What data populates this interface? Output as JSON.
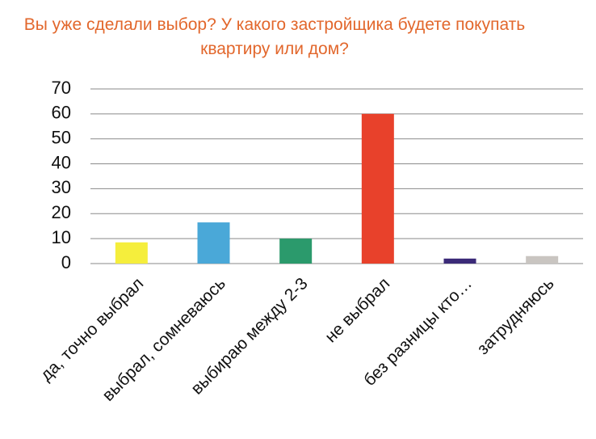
{
  "chart_data": {
    "type": "bar",
    "title": "Вы уже сделали выбор? У какого застройщика будете покупать квартиру или дом?",
    "categories": [
      "да, точно  выбрал",
      "выбрал, сомневаюсь",
      "выбираю между 2-3",
      "не выбрал",
      "без разницы кто…",
      "затрудняюсь"
    ],
    "values": [
      8.5,
      16.5,
      10,
      60,
      2,
      3
    ],
    "colors": [
      "#f5ee3c",
      "#4aa8d8",
      "#2b9a6c",
      "#e8412b",
      "#3b2a78",
      "#c9c5c1"
    ],
    "ylim": [
      0,
      70
    ],
    "yticks": [
      0,
      10,
      20,
      30,
      40,
      50,
      60,
      70
    ],
    "grid": true
  }
}
